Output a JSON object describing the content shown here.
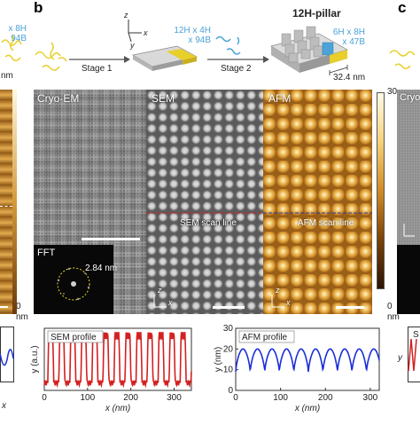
{
  "panels": {
    "b": "b",
    "c": "c"
  },
  "schematic": {
    "left_label_lines": [
      "x 8H",
      "94B"
    ],
    "monomer_label_lines": [
      "12H x 4H",
      "x 94B"
    ],
    "stage1": "Stage 1",
    "stage2": "Stage 2",
    "pillar_title": "12H-pillar",
    "pillar_label_lines": [
      "6H x 8H",
      "x 47B"
    ],
    "dimension": "32.4 nm",
    "axis_x": "x",
    "axis_y": "y",
    "axis_z": "z"
  },
  "left_strip": {
    "unit_top": "nm",
    "unit_bottom": "nm",
    "zero_tick": "0"
  },
  "colorbar": {
    "max": "30",
    "min": "0",
    "unit": "nm"
  },
  "micrographs": {
    "cryo_em": "Cryo-EM",
    "sem": "SEM",
    "afm": "AFM",
    "cryo_right": "Cryo",
    "sem_scan": "SEM scan line",
    "afm_scan": "AFM scan line",
    "fft": "FFT",
    "fft_value": "2.84 nm",
    "axis_x": "x",
    "axis_z": "z"
  },
  "colors": {
    "afm_gold": "#c8892b",
    "sem_red": "#d42020",
    "afm_blue": "#1a2fd8",
    "label_blue": "#4ba3d8",
    "dna_yellow": "#e8cf2a"
  },
  "chart_data": [
    {
      "type": "line",
      "title": "SEM profile",
      "xlabel": "x (nm)",
      "ylabel": "y (a.u.)",
      "xlim": [
        0,
        340
      ],
      "xticks": [
        0,
        100,
        200,
        300
      ],
      "series": [
        {
          "color": "#d42020",
          "period": 25.5,
          "start": 8,
          "high": 0.88,
          "low": 0.12
        }
      ]
    },
    {
      "type": "line",
      "title": "AFM profile",
      "xlabel": "x (nm)",
      "ylabel": "y (nm)",
      "xlim": [
        0,
        320
      ],
      "ylim": [
        0,
        30
      ],
      "xticks": [
        0,
        100,
        200,
        300
      ],
      "yticks": [
        0,
        10,
        20,
        30
      ],
      "series": [
        {
          "color": "#1a2fd8",
          "period": 32.4,
          "start": 0,
          "high": 20,
          "low": 9
        }
      ]
    }
  ],
  "bottom_stubs": {
    "left_x": "x",
    "right_title": "S",
    "right_y": "y"
  }
}
